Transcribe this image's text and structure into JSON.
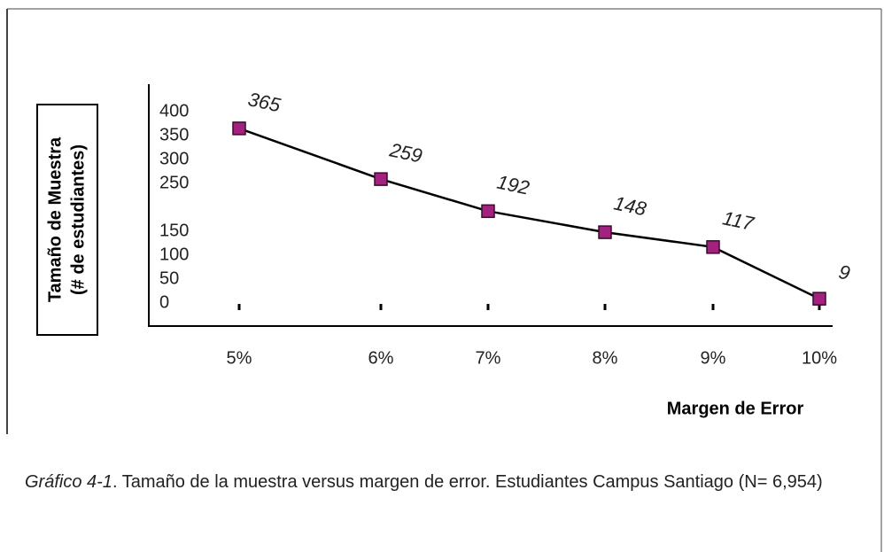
{
  "chart_data": {
    "type": "line",
    "y_label": [
      "Tamaño de Muestra",
      "(# de estudiantes)"
    ],
    "x_label": "Margen de Error",
    "categories": [
      "5%",
      "6%",
      "7%",
      "8%",
      "9%",
      "10%"
    ],
    "series": [
      {
        "name": "Tamaño de Muestra",
        "color": "#a3217f",
        "values": [
          365,
          259,
          192,
          148,
          117,
          9
        ]
      }
    ],
    "ylim": [
      0,
      400
    ],
    "yticks": [
      400,
      350,
      300,
      250,
      150,
      100,
      50,
      0
    ],
    "caption_label": "Gráfico 4-1",
    "caption_text": ". Tamaño de la muestra versus margen de error. Estudiantes Campus Santiago (N= 6,954)"
  }
}
